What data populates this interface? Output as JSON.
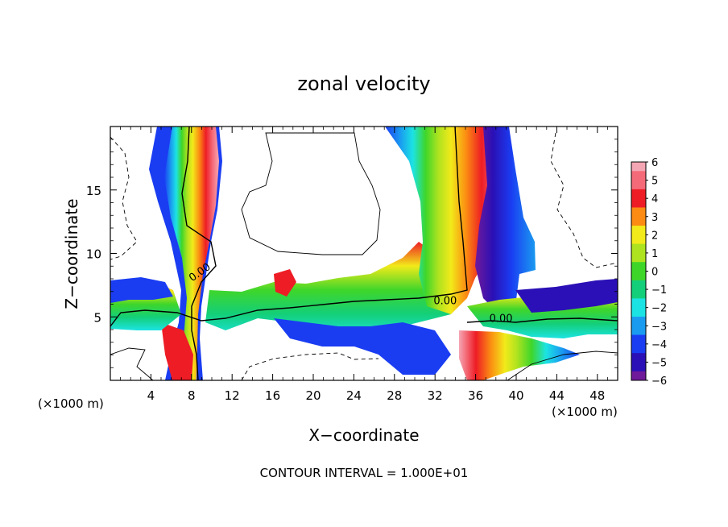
{
  "chart_data": {
    "type": "heatmap",
    "title": "zonal velocity",
    "xlabel": "X−coordinate",
    "ylabel": "Z−coordinate",
    "x_unit_left": "(×1000 m)",
    "x_unit_right": "(×1000 m)",
    "footer": "CONTOUR INTERVAL = 1.000E+01",
    "xlim": [
      0,
      50
    ],
    "ylim": [
      0,
      20
    ],
    "x_ticks": [
      4,
      8,
      12,
      16,
      20,
      24,
      28,
      32,
      36,
      40,
      44,
      48
    ],
    "y_ticks": [
      5,
      10,
      15
    ],
    "colorbar": {
      "min": -6,
      "max": 6,
      "labels": [
        "6",
        "5",
        "4",
        "3",
        "2",
        "1",
        "0",
        "−1",
        "−2",
        "−3",
        "−4",
        "−5",
        "−6"
      ]
    },
    "contour_labels": [
      {
        "text": "0.00",
        "x": 9.0,
        "y": 8.3
      },
      {
        "text": "0.00",
        "x": 33.0,
        "y": 6.0
      },
      {
        "text": "0.00",
        "x": 38.5,
        "y": 4.6
      }
    ],
    "colors": {
      "v6": "#f5a6b4",
      "v5": "#f56a78",
      "v4": "#ee1c25",
      "v3": "#fb8b12",
      "v2": "#f2ea1a",
      "v1": "#aee31f",
      "v0": "#3fd62a",
      "vm1": "#13cf7a",
      "vm2": "#1ce3e3",
      "vm3": "#1a9bf0",
      "vm4": "#1a3df2",
      "vm5": "#2a10b6",
      "vm6": "#6f1a9a"
    }
  }
}
